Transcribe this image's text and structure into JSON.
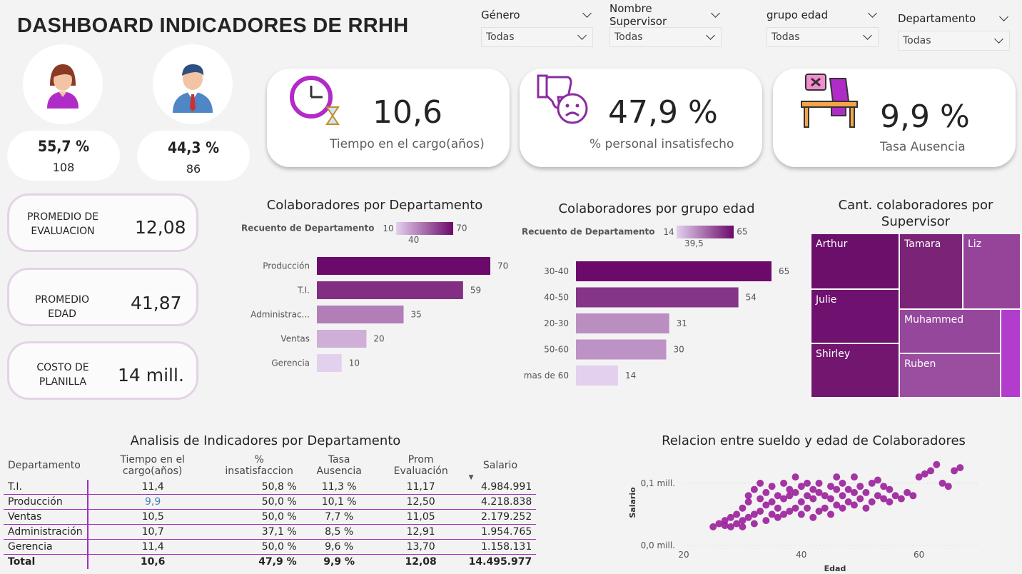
{
  "header": {
    "title": "DASHBOARD INDICADORES DE RRHH"
  },
  "filters": [
    {
      "label": "Género",
      "value": "Todas"
    },
    {
      "label": "Nombre Supervisor",
      "value": "Todas"
    },
    {
      "label": "grupo edad",
      "value": "Todas"
    },
    {
      "label": "Departamento",
      "value": "Todas"
    }
  ],
  "gender": {
    "female": {
      "pct": "55,7 %",
      "count": "108",
      "icon": "female-user-icon"
    },
    "male": {
      "pct": "44,3 %",
      "count": "86",
      "icon": "male-user-icon"
    }
  },
  "kpis": {
    "tenure": {
      "value": "10,6",
      "caption": "Tiempo en el cargo(años)",
      "icon": "clock-hourglass-icon"
    },
    "dissatisfied": {
      "value": "47,9 %",
      "caption": "% personal insatisfecho",
      "icon": "thumbs-down-icon"
    },
    "absence": {
      "value": "9,9 %",
      "caption": "Tasa Ausencia",
      "icon": "empty-desk-icon"
    }
  },
  "stats": [
    {
      "label": "PROMEDIO DE\nEVALUACION",
      "value": "12,08"
    },
    {
      "label": "PROMEDIO EDAD",
      "value": "41,87"
    },
    {
      "label": "COSTO DE\nPLANILLA",
      "value": "14 mill."
    }
  ],
  "colors": {
    "accent": "#6b0a6b",
    "light": "#d9c6ea",
    "pill_border": "#e3d3e5"
  },
  "chart_data": [
    {
      "type": "bar",
      "orientation": "horizontal",
      "title": "Colaboradores por Departamento",
      "legend": {
        "title": "Recuento de Departamento",
        "min": "10",
        "mid": "40",
        "max": "70"
      },
      "categories": [
        "Producción",
        "T.I.",
        "Administrac...",
        "Ventas",
        "Gerencia"
      ],
      "values": [
        70,
        59,
        35,
        20,
        10
      ]
    },
    {
      "type": "bar",
      "orientation": "horizontal",
      "title": "Colaboradores por grupo edad",
      "legend": {
        "title": "Recuento de Departamento",
        "min": "14",
        "mid": "39,5",
        "max": "65"
      },
      "categories": [
        "30-40",
        "40-50",
        "20-30",
        "50-60",
        "mas de 60"
      ],
      "values": [
        65,
        54,
        31,
        30,
        14
      ]
    },
    {
      "type": "treemap",
      "title": "Cant. colaboradores por Supervisor",
      "categories": [
        "Arthur",
        "Julie",
        "Shirley",
        "Tamara",
        "Liz",
        "Muhammed",
        "Ruben"
      ]
    },
    {
      "type": "table",
      "title": "Analisis de Indicadores por Departamento",
      "columns": [
        "Departamento",
        "Tiempo en el cargo(años)",
        "% insatisfaccion",
        "Tasa Ausencia",
        "Prom Evaluación",
        "Salario"
      ],
      "rows": [
        [
          "T.I.",
          "11,4",
          "50,8 %",
          "11,3 %",
          "11,17",
          "4.984.991"
        ],
        [
          "Producción",
          "9,9",
          "50,0 %",
          "10,1 %",
          "12,50",
          "4.218.838"
        ],
        [
          "Ventas",
          "10,5",
          "50,0 %",
          "7,7 %",
          "11,05",
          "2.179.252"
        ],
        [
          "Administración",
          "10,7",
          "37,1 %",
          "8,5 %",
          "12,91",
          "1.954.765"
        ],
        [
          "Gerencia",
          "11,4",
          "50,0 %",
          "9,6 %",
          "13,70",
          "1.158.131"
        ]
      ],
      "total": [
        "Total",
        "10,6",
        "47,9 %",
        "9,9 %",
        "12,08",
        "14.495.977"
      ]
    },
    {
      "type": "scatter",
      "title": "Relacion entre sueldo y edad de Colaboradores",
      "xlabel": "Edad",
      "ylabel": "Salario",
      "xticks": [
        "20",
        "40",
        "60"
      ],
      "yticks": [
        "0,0 mill.",
        "0,1 mill."
      ],
      "xlim": [
        20,
        70
      ],
      "ylim": [
        0,
        0.14
      ],
      "points": [
        [
          25,
          0.03
        ],
        [
          26,
          0.035
        ],
        [
          27,
          0.032
        ],
        [
          27,
          0.04
        ],
        [
          28,
          0.03
        ],
        [
          28,
          0.045
        ],
        [
          29,
          0.035
        ],
        [
          29,
          0.05
        ],
        [
          30,
          0.04
        ],
        [
          30,
          0.06
        ],
        [
          30,
          0.03
        ],
        [
          31,
          0.045
        ],
        [
          31,
          0.07
        ],
        [
          31,
          0.08
        ],
        [
          32,
          0.05
        ],
        [
          32,
          0.09
        ],
        [
          32,
          0.035
        ],
        [
          33,
          0.055
        ],
        [
          33,
          0.075
        ],
        [
          33,
          0.1
        ],
        [
          34,
          0.04
        ],
        [
          34,
          0.065
        ],
        [
          34,
          0.085
        ],
        [
          35,
          0.05
        ],
        [
          35,
          0.07
        ],
        [
          35,
          0.095
        ],
        [
          36,
          0.045
        ],
        [
          36,
          0.06
        ],
        [
          36,
          0.08
        ],
        [
          37,
          0.05
        ],
        [
          37,
          0.075
        ],
        [
          37,
          0.1
        ],
        [
          38,
          0.055
        ],
        [
          38,
          0.08
        ],
        [
          38,
          0.09
        ],
        [
          39,
          0.06
        ],
        [
          39,
          0.085
        ],
        [
          39,
          0.11
        ],
        [
          40,
          0.05
        ],
        [
          40,
          0.07
        ],
        [
          40,
          0.095
        ],
        [
          41,
          0.06
        ],
        [
          41,
          0.08
        ],
        [
          41,
          0.1
        ],
        [
          42,
          0.045
        ],
        [
          42,
          0.075
        ],
        [
          42,
          0.09
        ],
        [
          43,
          0.055
        ],
        [
          43,
          0.085
        ],
        [
          43,
          0.1
        ],
        [
          44,
          0.06
        ],
        [
          44,
          0.08
        ],
        [
          45,
          0.05
        ],
        [
          45,
          0.075
        ],
        [
          45,
          0.095
        ],
        [
          46,
          0.065
        ],
        [
          46,
          0.09
        ],
        [
          46,
          0.11
        ],
        [
          47,
          0.06
        ],
        [
          47,
          0.08
        ],
        [
          47,
          0.1
        ],
        [
          48,
          0.07
        ],
        [
          48,
          0.09
        ],
        [
          49,
          0.065
        ],
        [
          49,
          0.085
        ],
        [
          49,
          0.11
        ],
        [
          50,
          0.075
        ],
        [
          50,
          0.095
        ],
        [
          51,
          0.06
        ],
        [
          51,
          0.085
        ],
        [
          52,
          0.07
        ],
        [
          52,
          0.1
        ],
        [
          53,
          0.08
        ],
        [
          53,
          0.105
        ],
        [
          54,
          0.075
        ],
        [
          54,
          0.095
        ],
        [
          55,
          0.07
        ],
        [
          55,
          0.09
        ],
        [
          56,
          0.08
        ],
        [
          57,
          0.075
        ],
        [
          58,
          0.085
        ],
        [
          59,
          0.08
        ],
        [
          60,
          0.11
        ],
        [
          61,
          0.115
        ],
        [
          62,
          0.12
        ],
        [
          63,
          0.13
        ],
        [
          64,
          0.1
        ],
        [
          65,
          0.095
        ],
        [
          66,
          0.12
        ],
        [
          67,
          0.125
        ]
      ]
    }
  ]
}
